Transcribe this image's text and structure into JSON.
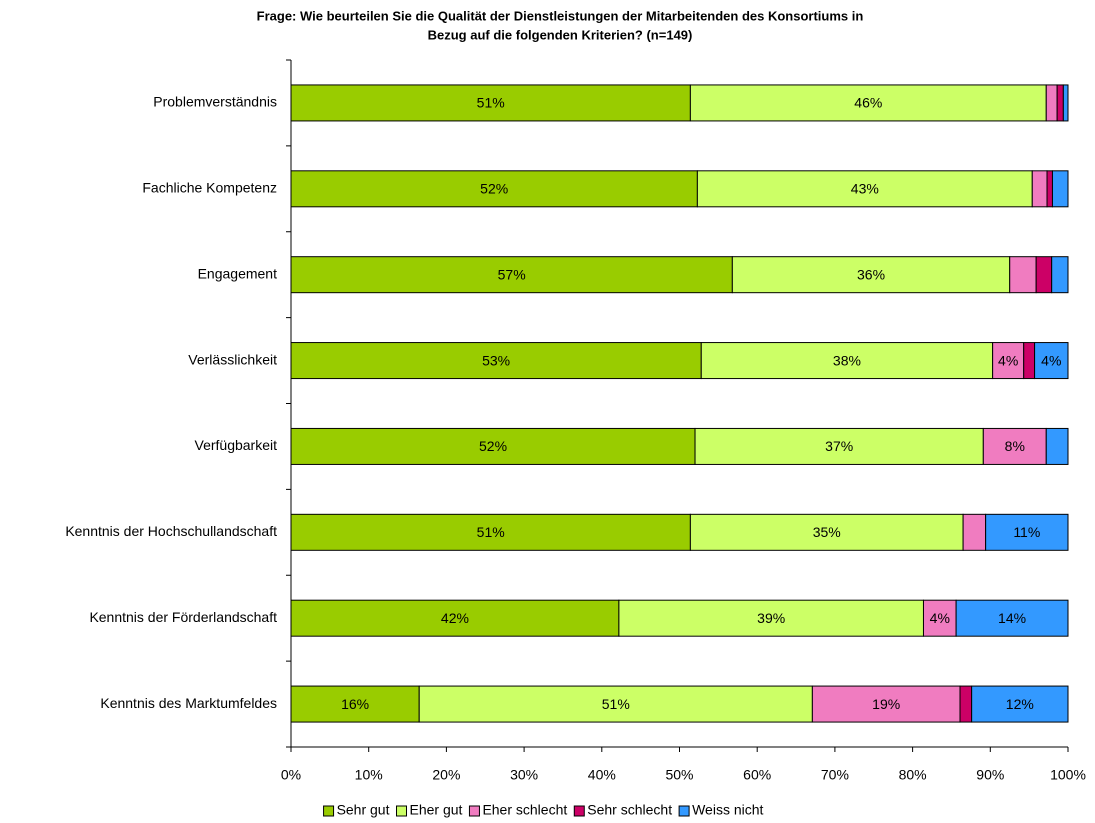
{
  "chart_data": {
    "type": "stacked-barh",
    "title": [
      "Frage: Wie beurteilen Sie die Qualität der Dienstleistungen der Mitarbeitenden des Konsortiums in",
      "Bezug auf die folgenden Kriterien? (n=149)"
    ],
    "categories": [
      "Problemverständnis",
      "Fachliche Kompetenz",
      "Engagement",
      "Verlässlichkeit",
      "Verfügbarkeit",
      "Kenntnis der Hochschullandschaft",
      "Kenntnis der Förderlandschaft",
      "Kenntnis des Marktumfeldes"
    ],
    "series": [
      {
        "name": "Sehr gut",
        "color": "#99cc00",
        "values": [
          51.4,
          52.3,
          56.8,
          52.8,
          52.0,
          51.4,
          42.2,
          16.5
        ],
        "value_labels": [
          "51%",
          "52%",
          "57%",
          "53%",
          "52%",
          "51%",
          "42%",
          "16%"
        ]
      },
      {
        "name": "Eher gut",
        "color": "#ccff66",
        "values": [
          45.8,
          43.1,
          35.7,
          37.5,
          37.1,
          35.1,
          39.2,
          50.6
        ],
        "value_labels": [
          "46%",
          "43%",
          "36%",
          "38%",
          "37%",
          "35%",
          "39%",
          "51%"
        ]
      },
      {
        "name": "Eher schlecht",
        "color": "#f07cc0",
        "values": [
          1.4,
          1.9,
          3.4,
          4.0,
          8.1,
          2.9,
          4.2,
          19.0
        ],
        "value_labels": [
          null,
          null,
          null,
          "4%",
          "8%",
          null,
          "4%",
          "19%"
        ]
      },
      {
        "name": "Sehr schlecht",
        "color": "#cc0066",
        "values": [
          0.8,
          0.7,
          2.0,
          1.4,
          0,
          0,
          0,
          1.5
        ],
        "value_labels": [
          null,
          null,
          null,
          null,
          null,
          null,
          null,
          null
        ]
      },
      {
        "name": "Weiss nicht",
        "color": "#3399ff",
        "values": [
          0.6,
          2.0,
          2.1,
          4.3,
          2.8,
          10.6,
          14.4,
          12.4
        ],
        "value_labels": [
          null,
          null,
          null,
          "4%",
          null,
          "11%",
          "14%",
          "12%"
        ]
      }
    ],
    "xlim": [
      0,
      100
    ],
    "xticks": [
      {
        "value": 0,
        "label": "0%"
      },
      {
        "value": 10,
        "label": "10%"
      },
      {
        "value": 20,
        "label": "20%"
      },
      {
        "value": 30,
        "label": "30%"
      },
      {
        "value": 40,
        "label": "40%"
      },
      {
        "value": 50,
        "label": "50%"
      },
      {
        "value": 60,
        "label": "60%"
      },
      {
        "value": 70,
        "label": "70%"
      },
      {
        "value": 80,
        "label": "80%"
      },
      {
        "value": 90,
        "label": "90%"
      },
      {
        "value": 100,
        "label": "100%"
      }
    ],
    "legend": "bottom"
  }
}
